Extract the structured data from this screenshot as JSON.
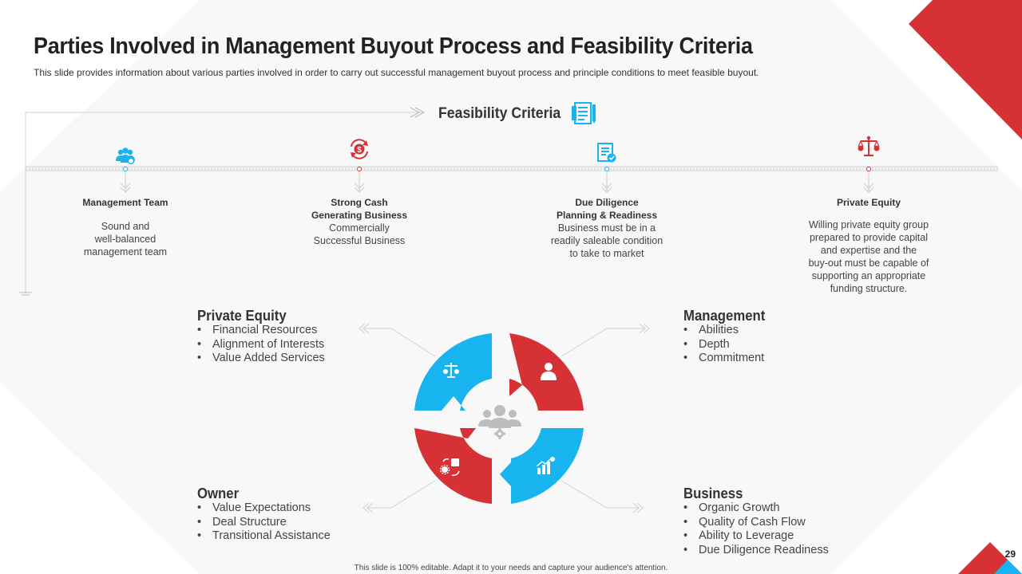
{
  "slide": {
    "title": "Parties Involved in Management Buyout Process and Feasibility Criteria",
    "subtitle": "This slide provides information about various parties involved  in order to carry out successful  management buyout process and principle  conditions to meet feasible buyout.",
    "footer": "This slide is 100% editable.  Adapt it to your needs and capture your audience's attention.",
    "page_number": "29"
  },
  "colors": {
    "red": "#d63235",
    "blue": "#17b4f0",
    "grey_icon": "#bdbdbd"
  },
  "feasibility": {
    "heading": "Feasibility Criteria",
    "icon": "document-list-icon",
    "items": [
      {
        "label": "Management Team",
        "description": "Sound and\nwell-balanced\nmanagement  team",
        "icon": "team-icon",
        "color": "blue"
      },
      {
        "label": "Strong Cash\nGenerating Business",
        "description": "Commercially\nSuccessful Business",
        "icon": "dollar-cycle-icon",
        "color": "red"
      },
      {
        "label": "Due Diligence\nPlanning & Readiness",
        "description": "Business must be in a\nreadily saleable condition\nto take to market",
        "icon": "checklist-icon",
        "color": "blue"
      },
      {
        "label": "Private  Equity",
        "description": "Willing private equity group\nprepared to provide capital\nand expertise and the\nbuy-out must be capable of\nsupporting  an appropriate\nfunding structure.",
        "icon": "balance-scale-icon",
        "color": "red"
      }
    ]
  },
  "parties": {
    "private_equity": {
      "title": "Private Equity",
      "items": [
        "Financial Resources",
        "Alignment of Interests",
        "Value Added Services"
      ],
      "icon": "balance-scale-icon",
      "color": "blue"
    },
    "management": {
      "title": "Management",
      "items": [
        "Abilities",
        "Depth",
        "Commitment"
      ],
      "icon": "person-icon",
      "color": "red"
    },
    "owner": {
      "title": "Owner",
      "items": [
        "Value Expectations",
        "Deal Structure",
        "Transitional Assistance"
      ],
      "icon": "owner-exchange-icon",
      "color": "red"
    },
    "business": {
      "title": "Business",
      "items": [
        "Organic Growth",
        "Quality of Cash Flow",
        "Ability to Leverage",
        "Due Diligence Readiness"
      ],
      "icon": "growth-chart-icon",
      "color": "blue"
    }
  },
  "center_icon": "group-gear-icon"
}
